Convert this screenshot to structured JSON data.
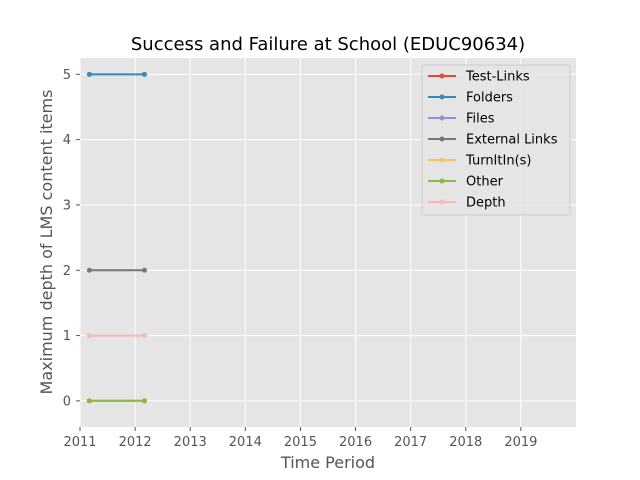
{
  "chart_data": {
    "type": "line",
    "title": "Success and Failure at School (EDUC90634)",
    "xlabel": "Time Period",
    "ylabel": "Maximum depth of LMS content items",
    "xlim": [
      2011,
      2020
    ],
    "ylim": [
      -0.4,
      5.25
    ],
    "xticks": [
      2011,
      2012,
      2013,
      2014,
      2015,
      2016,
      2017,
      2018,
      2019
    ],
    "xtick_labels": [
      "2011",
      "2012",
      "2013",
      "2014",
      "2015",
      "2016",
      "2017",
      "2018",
      "2019"
    ],
    "yticks": [
      0,
      1,
      2,
      3,
      4,
      5
    ],
    "ytick_labels": [
      "0",
      "1",
      "2",
      "3",
      "4",
      "5"
    ],
    "grid": true,
    "legend_position": "top-right",
    "x": [
      2011.17,
      2012.17
    ],
    "series": [
      {
        "name": "Test-Links",
        "color": "#e24a33",
        "values": [
          0,
          0
        ]
      },
      {
        "name": "Folders",
        "color": "#348abd",
        "values": [
          5,
          5
        ]
      },
      {
        "name": "Files",
        "color": "#988ed5",
        "values": [
          0,
          0
        ]
      },
      {
        "name": "External Links",
        "color": "#777777",
        "values": [
          2,
          2
        ]
      },
      {
        "name": "TurnItIn(s)",
        "color": "#fbc15e",
        "values": [
          0,
          0
        ]
      },
      {
        "name": "Other",
        "color": "#8eba42",
        "values": [
          0,
          0
        ]
      },
      {
        "name": "Depth",
        "color": "#ffb5b8",
        "values": [
          1,
          1
        ]
      }
    ]
  }
}
